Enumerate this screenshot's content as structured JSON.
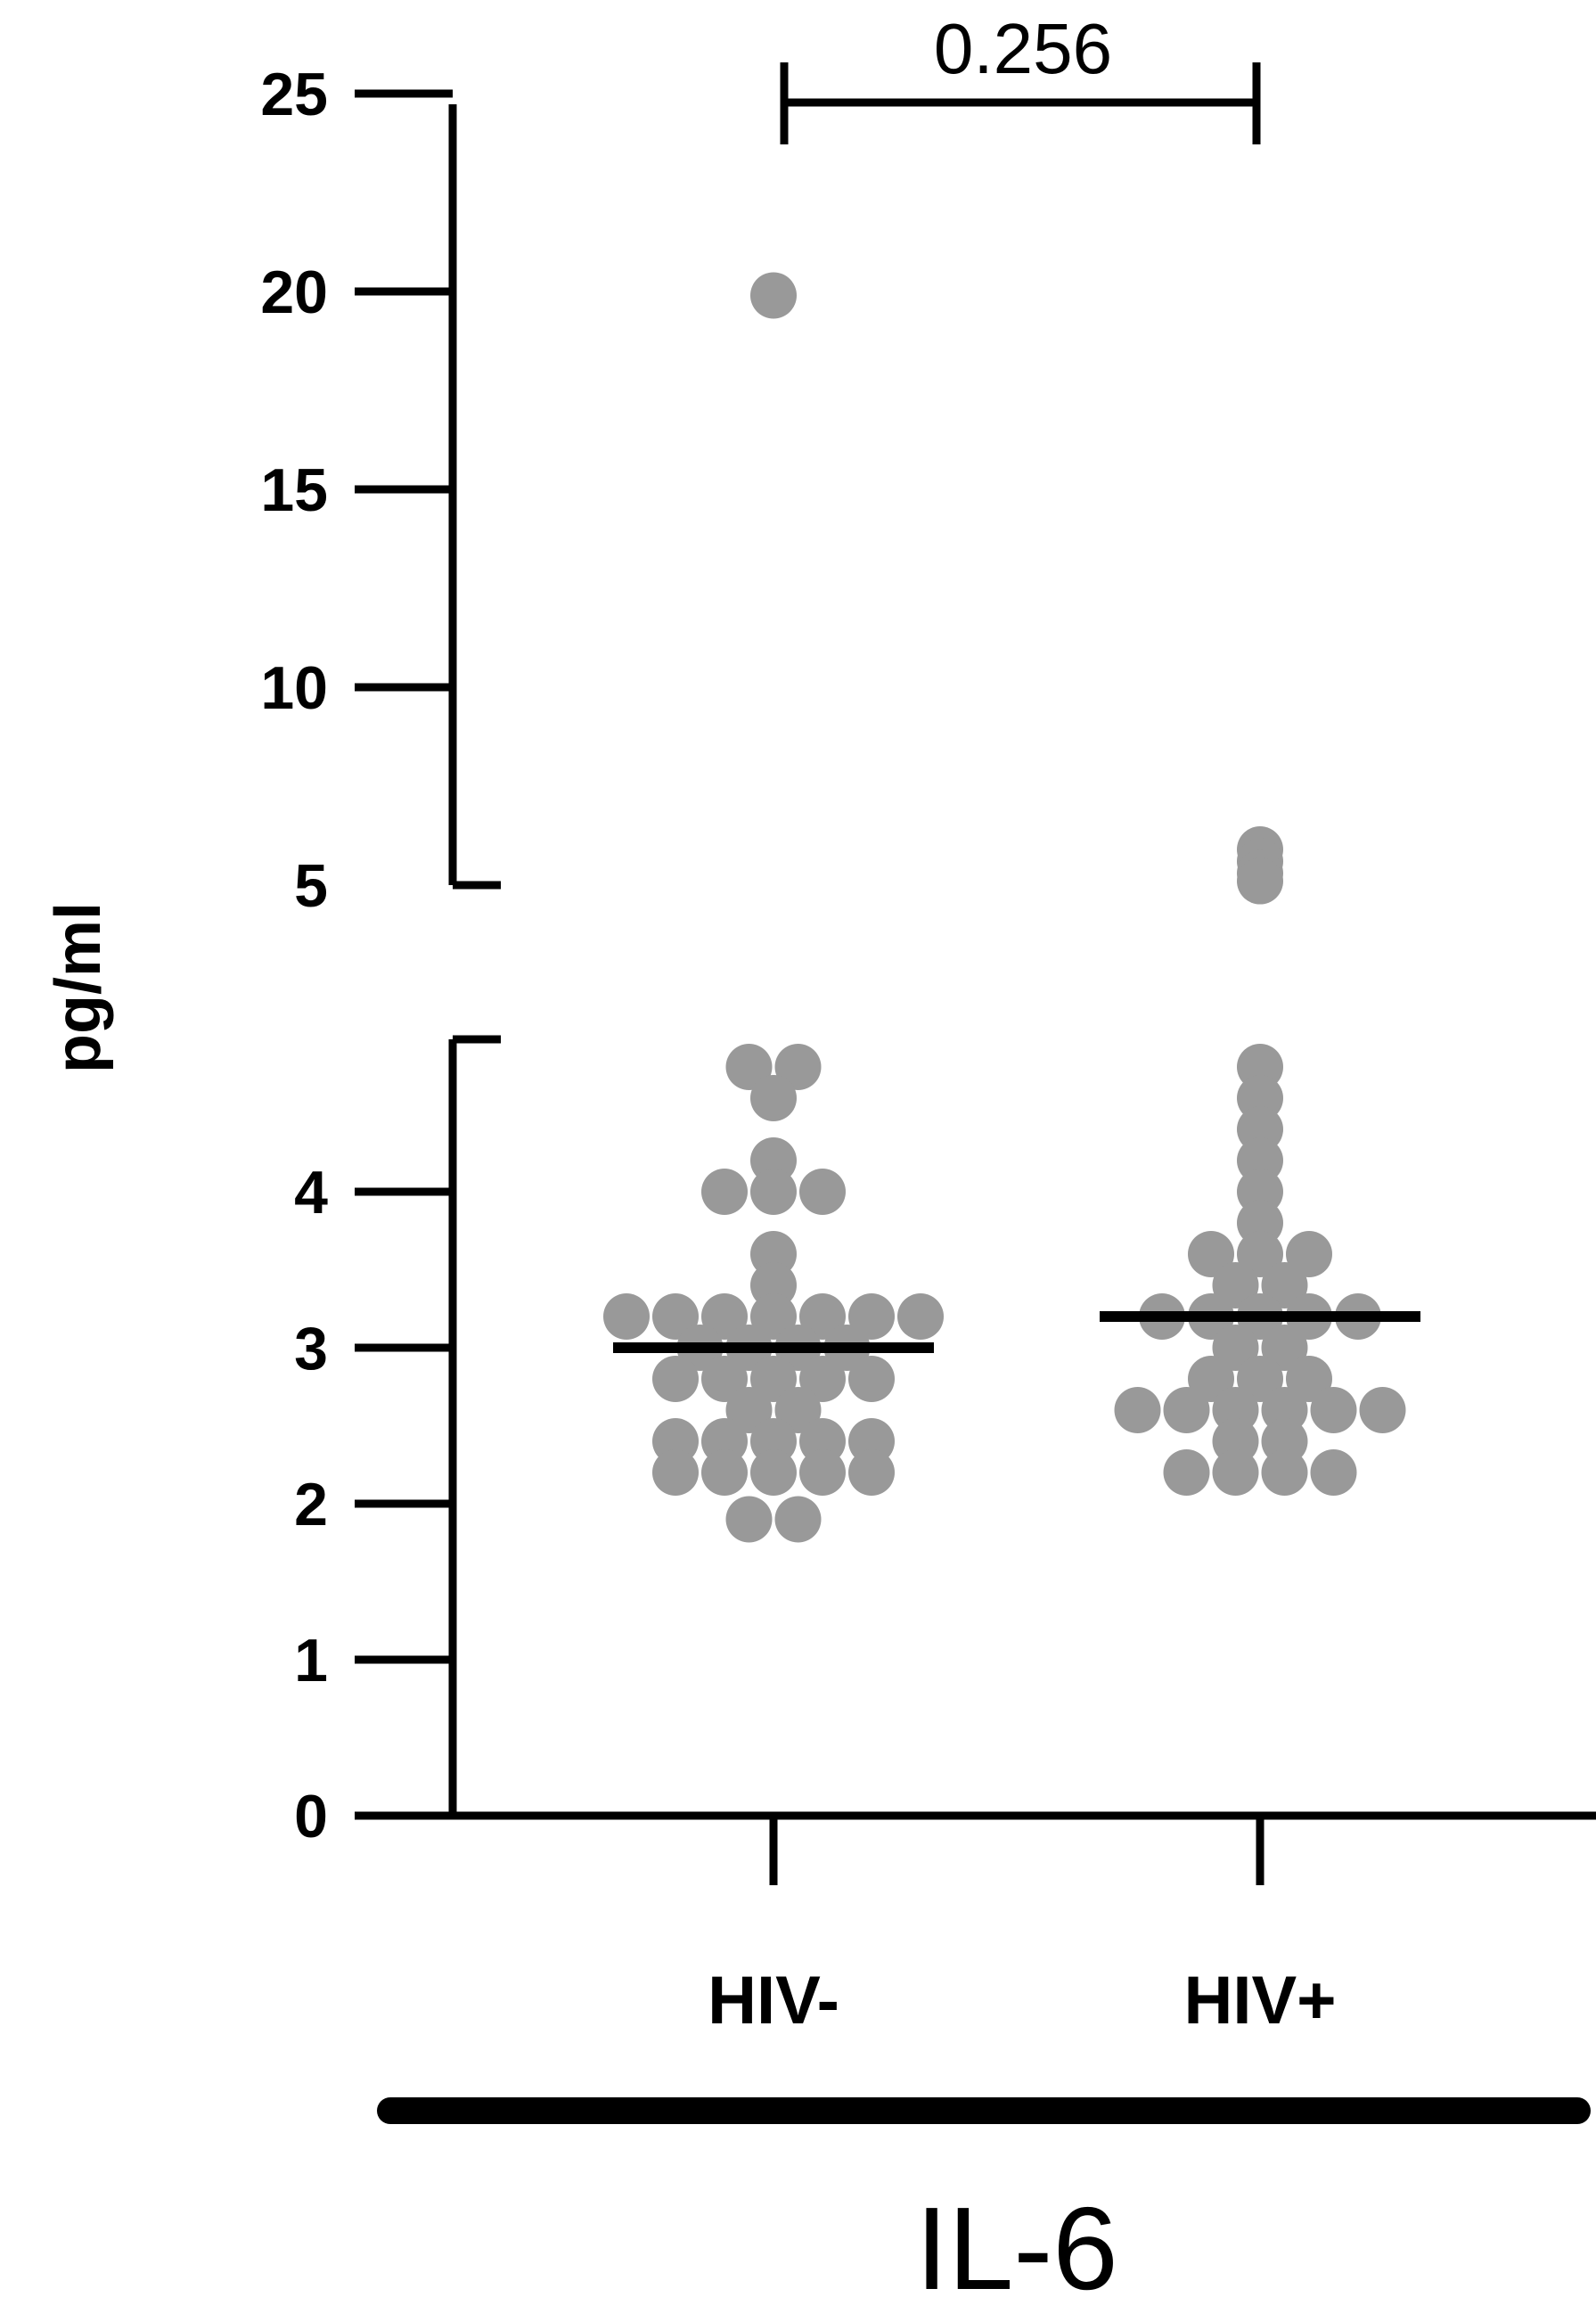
{
  "chart_data": {
    "type": "scatter",
    "title": "",
    "xlabel": "",
    "ylabel": "pg/ml",
    "categories": [
      "HIV-",
      "HIV+"
    ],
    "caption": "IL-6",
    "y_axis": {
      "broken": true,
      "lower_segment": {
        "range": [
          0,
          4.8
        ],
        "ticks": [
          "0",
          "1",
          "2",
          "3",
          "4"
        ]
      },
      "upper_segment": {
        "range": [
          5,
          25
        ],
        "ticks": [
          "5",
          "10",
          "15",
          "20",
          "25"
        ]
      }
    },
    "comparison": {
      "groups": [
        "HIV-",
        "HIV+"
      ],
      "p_value": "0.256"
    },
    "series": [
      {
        "category": "HIV-",
        "median": 3.0,
        "values": [
          19.9,
          4.8,
          4.8,
          4.6,
          4.2,
          4.0,
          4.0,
          4.0,
          3.6,
          3.4,
          3.2,
          3.2,
          3.2,
          3.2,
          3.2,
          3.2,
          3.2,
          3.0,
          3.0,
          3.0,
          3.0,
          2.8,
          2.8,
          2.8,
          2.8,
          2.8,
          2.6,
          2.6,
          2.4,
          2.4,
          2.4,
          2.4,
          2.4,
          2.2,
          2.2,
          2.2,
          2.2,
          2.2,
          1.9,
          1.9
        ]
      },
      {
        "category": "HIV+",
        "median": 3.2,
        "values": [
          5.9,
          5.6,
          5.3,
          5.1,
          4.8,
          4.6,
          4.4,
          4.2,
          4.0,
          3.8,
          3.6,
          3.6,
          3.6,
          3.4,
          3.4,
          3.2,
          3.2,
          3.2,
          3.2,
          3.2,
          3.0,
          3.0,
          2.8,
          2.8,
          2.8,
          2.6,
          2.6,
          2.6,
          2.6,
          2.6,
          2.6,
          2.4,
          2.4,
          2.2,
          2.2,
          2.2,
          2.2
        ]
      }
    ]
  }
}
